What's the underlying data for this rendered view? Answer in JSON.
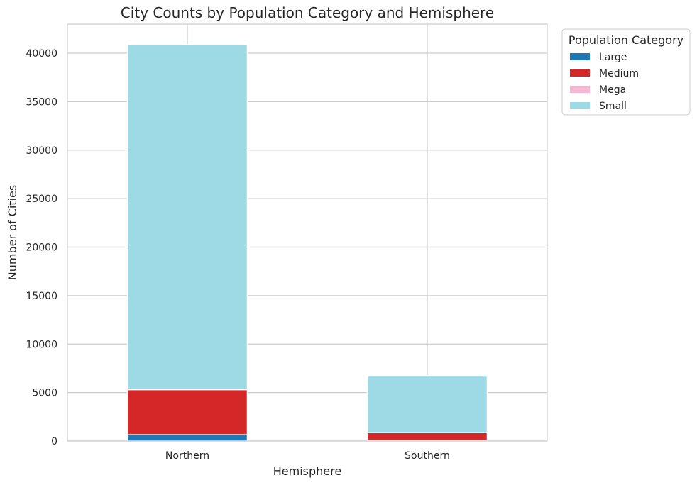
{
  "chart_data": {
    "type": "bar",
    "stacked": true,
    "title": "City Counts by Population Category and Hemisphere",
    "xlabel": "Hemisphere",
    "ylabel": "Number of Cities",
    "categories": [
      "Northern",
      "Southern"
    ],
    "series": [
      {
        "name": "Large",
        "values": [
          650,
          60
        ],
        "color": "#1f77b4"
      },
      {
        "name": "Medium",
        "values": [
          4650,
          800
        ],
        "color": "#d62728"
      },
      {
        "name": "Mega",
        "values": [
          20,
          5
        ],
        "color": "#f7b6d2"
      },
      {
        "name": "Small",
        "values": [
          35570,
          5900
        ],
        "color": "#9edae5"
      }
    ],
    "ylim": [
      0,
      43000
    ],
    "yticks": [
      0,
      5000,
      10000,
      15000,
      20000,
      25000,
      30000,
      35000,
      40000
    ],
    "ytick_labels": [
      "0",
      "5000",
      "10000",
      "15000",
      "20000",
      "25000",
      "30000",
      "35000",
      "40000"
    ],
    "grid": true,
    "legend": {
      "title": "Population Category",
      "placement": "outside-top-right"
    }
  }
}
